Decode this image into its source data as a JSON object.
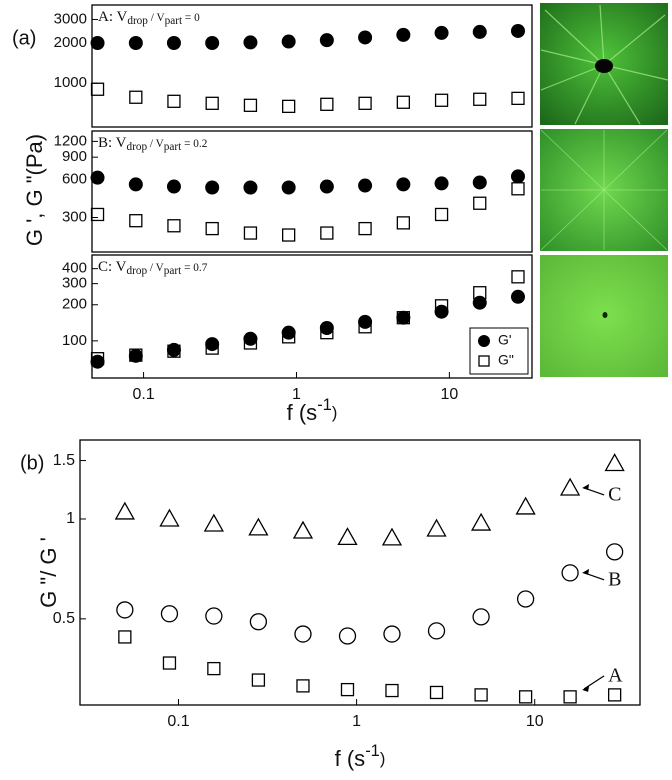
{
  "chart_data": [
    {
      "type": "scatter",
      "panel_label": "(a)",
      "annotation": {
        "prefix": "A: V",
        "sub1": "drop",
        "mid": " / V",
        "sub2": "part",
        "suffix": " = 0"
      },
      "log_x": true,
      "log_y": true,
      "xlim": [
        0.046,
        34.7
      ],
      "ylim": [
        470,
        3850
      ],
      "yticks": [
        1000,
        2000,
        3000
      ],
      "x": [
        0.05,
        0.089,
        0.158,
        0.281,
        0.5,
        0.889,
        1.58,
        2.81,
        5,
        8.89,
        15.8,
        28.1
      ],
      "series": [
        {
          "marker": "filled-circle",
          "color": "#000000",
          "values": [
            2000,
            2000,
            2000,
            2000,
            2020,
            2050,
            2100,
            2200,
            2300,
            2380,
            2420,
            2460
          ]
        },
        {
          "marker": "open-square",
          "color": "#000000",
          "values": [
            901,
            785,
            732,
            707,
            683,
            671,
            695,
            707,
            720,
            745,
            758,
            770
          ]
        }
      ]
    },
    {
      "type": "scatter",
      "ylabel": "G ', G \"(Pa)",
      "annotation": {
        "prefix": "B: V",
        "sub1": "drop",
        "mid": " / V",
        "sub2": "part",
        "suffix": " = 0.2"
      },
      "log_x": true,
      "log_y": true,
      "xlim": [
        0.046,
        34.7
      ],
      "ylim": [
        160,
        1450
      ],
      "yticks": [
        300,
        600,
        900,
        1200
      ],
      "x": [
        0.05,
        0.089,
        0.158,
        0.281,
        0.5,
        0.889,
        1.58,
        2.81,
        5,
        8.89,
        15.8,
        28.1
      ],
      "series": [
        {
          "marker": "filled-circle",
          "color": "#000000",
          "values": [
            620,
            548,
            527,
            518,
            518,
            518,
            527,
            537,
            548,
            558,
            568,
            634
          ]
        },
        {
          "marker": "open-square",
          "color": "#000000",
          "values": [
            317,
            283,
            258,
            245,
            226,
            218,
            226,
            245,
            272,
            317,
            389,
            506
          ]
        }
      ]
    },
    {
      "type": "scatter",
      "xlabel": {
        "base": "f (s",
        "sup": "-1",
        "end": ")"
      },
      "annotation": {
        "prefix": "C: V",
        "sub1": "drop",
        "mid": " / V",
        "sub2": "part",
        "suffix": " = 0.7"
      },
      "log_x": true,
      "log_y": true,
      "xlim": [
        0.046,
        34.7
      ],
      "ylim": [
        49,
        520
      ],
      "yticks": [
        100,
        200,
        300,
        400
      ],
      "xticks": [
        0.1,
        1,
        10
      ],
      "legend": "lower right",
      "x": [
        0.05,
        0.089,
        0.158,
        0.281,
        0.5,
        0.889,
        1.58,
        2.81,
        5,
        8.89,
        15.8,
        28.1
      ],
      "series": [
        {
          "name": "G'",
          "marker": "filled-circle",
          "color": "#000000",
          "values": [
            67,
            75,
            84,
            94,
            104,
            117,
            128,
            144,
            156,
            175,
            208,
            233
          ]
        },
        {
          "name": "G\"",
          "marker": "open-square",
          "color": "#000000",
          "values": [
            71,
            76,
            82,
            87,
            96,
            108,
            117,
            131,
            156,
            196,
            252,
            342
          ]
        }
      ]
    },
    {
      "type": "scatter",
      "panel_label": "(b)",
      "ylabel": "G \"/ G '",
      "xlabel": {
        "base": "f (s",
        "sup": "-1",
        "end": ")"
      },
      "log_x": true,
      "log_y": true,
      "xlim": [
        0.028,
        39
      ],
      "ylim": [
        0.275,
        1.73
      ],
      "yticks": [
        0.5,
        1,
        1.5
      ],
      "xticks": [
        0.1,
        1,
        10
      ],
      "x": [
        0.05,
        0.089,
        0.158,
        0.281,
        0.5,
        0.889,
        1.58,
        2.81,
        5,
        8.89,
        15.8,
        28.1
      ],
      "series": [
        {
          "name": "C",
          "marker": "open-triangle",
          "color": "#000000",
          "values": [
            1.05,
            1.0,
            0.966,
            0.94,
            0.92,
            0.88,
            0.877,
            0.933,
            0.972,
            1.087,
            1.24,
            1.47
          ]
        },
        {
          "name": "B",
          "marker": "open-circle",
          "color": "#000000",
          "values": [
            0.532,
            0.518,
            0.51,
            0.49,
            0.45,
            0.444,
            0.45,
            0.46,
            0.507,
            0.574,
            0.688,
            0.796
          ]
        },
        {
          "name": "A",
          "marker": "open-square",
          "color": "#000000",
          "values": [
            0.441,
            0.368,
            0.354,
            0.327,
            0.314,
            0.306,
            0.304,
            0.3,
            0.295,
            0.291,
            0.291,
            0.295
          ]
        }
      ]
    }
  ]
}
